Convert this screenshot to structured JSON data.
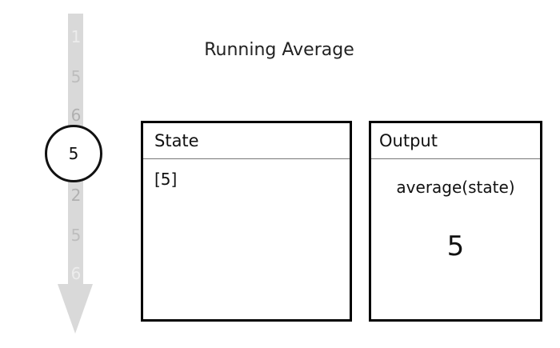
{
  "title": "Running Average",
  "stream": {
    "items": [
      "1",
      "5",
      "6",
      "5",
      "2",
      "5",
      "6"
    ],
    "current": "5"
  },
  "state": {
    "label": "State",
    "value": "[5]"
  },
  "output": {
    "label": "Output",
    "function": "average(state)",
    "value": "5"
  }
}
